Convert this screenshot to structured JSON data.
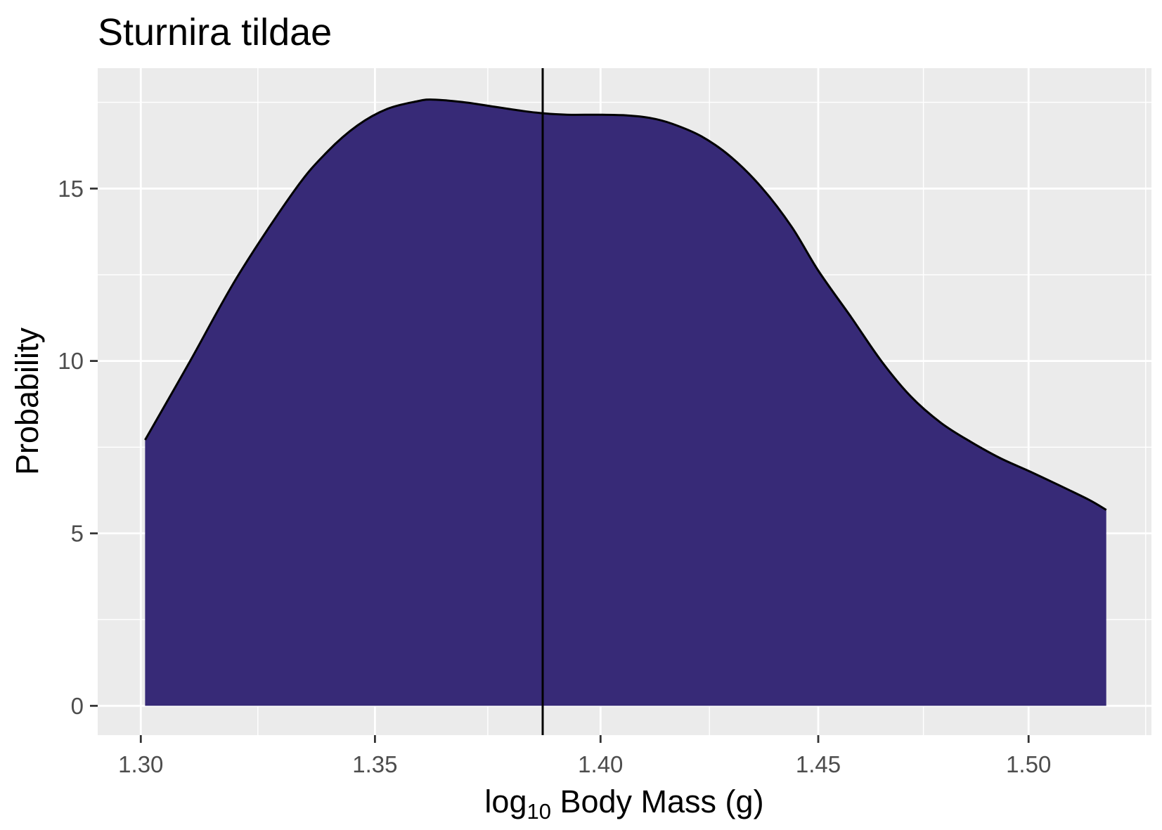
{
  "chart_data": {
    "type": "area",
    "title": "Sturnira tildae",
    "xlabel": {
      "base": "log",
      "subscript": "10",
      "rest": " Body Mass (g)"
    },
    "ylabel": "Probability",
    "x_log": true,
    "xlim": [
      1.291,
      1.53
    ],
    "ylim": [
      -0.85,
      18.49
    ],
    "x_ticks": [
      "1.30",
      "1.35",
      "1.40",
      "1.45",
      "1.50"
    ],
    "y_ticks": [
      "0",
      "5",
      "10",
      "15"
    ],
    "grid": true,
    "series": [
      {
        "x": [
          1.3009,
          1.3103,
          1.3206,
          1.3328,
          1.3397,
          1.3462,
          1.3527,
          1.3592,
          1.3626,
          1.3691,
          1.3758,
          1.3825,
          1.3872,
          1.3925,
          1.3993,
          1.406,
          1.4111,
          1.4162,
          1.423,
          1.4299,
          1.4369,
          1.4438,
          1.45,
          1.4577,
          1.4648,
          1.4718,
          1.4789,
          1.486,
          1.4932,
          1.5004,
          1.5073,
          1.5146,
          1.5189
        ],
        "y": [
          7.71,
          9.98,
          12.49,
          14.98,
          16.07,
          16.83,
          17.31,
          17.53,
          17.58,
          17.51,
          17.38,
          17.25,
          17.18,
          17.14,
          17.14,
          17.12,
          17.05,
          16.88,
          16.51,
          15.9,
          15.02,
          13.89,
          12.62,
          11.27,
          10.0,
          8.97,
          8.21,
          7.66,
          7.18,
          6.79,
          6.4,
          5.98,
          5.68
        ],
        "fill": "#372A77",
        "line_color": "#000000"
      }
    ],
    "vline": {
      "x": 1.387,
      "color": "#000000"
    },
    "colors": {
      "panel": "#EBEBEB",
      "grid": "#FFFFFF",
      "tick_text": "#4D4D4D",
      "tick_mark": "#333333"
    }
  }
}
